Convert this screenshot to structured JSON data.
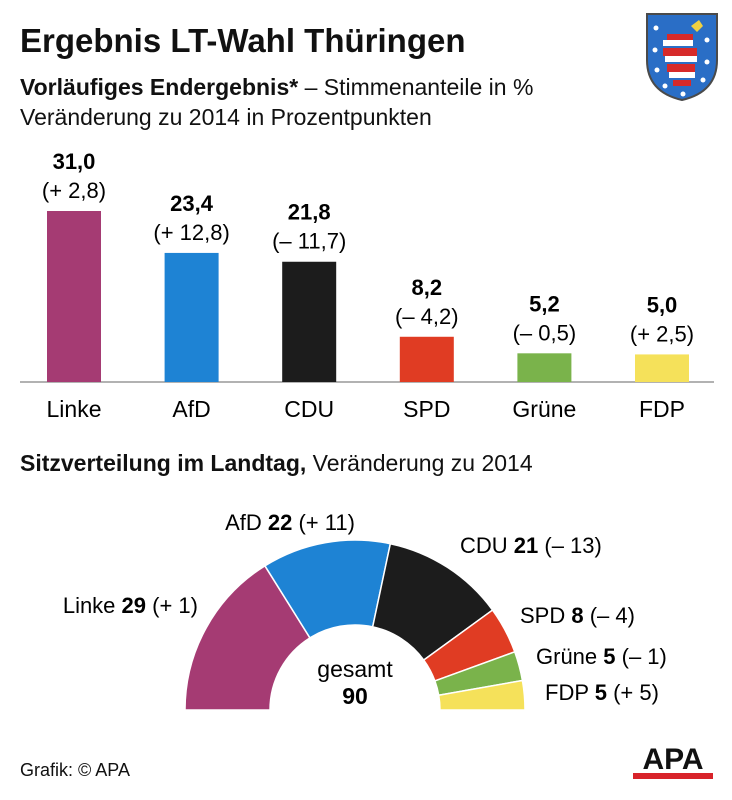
{
  "header": {
    "title": "Ergebnis LT-Wahl Thüringen",
    "subtitle_bold": "Vorläufiges Endergebnis*",
    "subtitle_rest": " – Stimmenanteile in %",
    "subtitle_line2": "Veränderung zu 2014 in Prozentpunkten"
  },
  "seats_heading": {
    "bold": "Sitzverteilung im Landtag,",
    "rest": " Veränderung zu 2014"
  },
  "center_label": {
    "text": "gesamt",
    "total": "90"
  },
  "credit": "Grafik: © APA",
  "logo_text": "APA",
  "chart_data": [
    {
      "type": "bar",
      "title": "Vorläufiges Endergebnis* – Stimmenanteile in %",
      "categories": [
        "Linke",
        "AfD",
        "CDU",
        "SPD",
        "Grüne",
        "FDP"
      ],
      "values": [
        31.0,
        23.4,
        21.8,
        8.2,
        5.2,
        5.0
      ],
      "value_labels": [
        "31,0",
        "23,4",
        "21,8",
        "8,2",
        "5,2",
        "5,0"
      ],
      "change_labels": [
        "(+ 2,8)",
        "(+ 12,8)",
        "(– 11,7)",
        "(– 4,2)",
        "(– 0,5)",
        "(+ 2,5)"
      ],
      "colors": [
        "#a53b73",
        "#1e83d4",
        "#1c1c1c",
        "#e03c23",
        "#7ab34b",
        "#f5e15a"
      ],
      "ylim": [
        0,
        31
      ]
    },
    {
      "type": "pie",
      "title": "Sitzverteilung im Landtag, Veränderung zu 2014",
      "categories": [
        "Linke",
        "AfD",
        "CDU",
        "SPD",
        "Grüne",
        "FDP"
      ],
      "values": [
        29,
        22,
        21,
        8,
        5,
        5
      ],
      "changes": [
        "(+ 1)",
        "(+ 11)",
        "(– 13)",
        "(– 4)",
        "(– 1)",
        "(+ 5)"
      ],
      "colors": [
        "#a53b73",
        "#1e83d4",
        "#1c1c1c",
        "#e03c23",
        "#7ab34b",
        "#f5e15a"
      ],
      "total": 90
    }
  ]
}
